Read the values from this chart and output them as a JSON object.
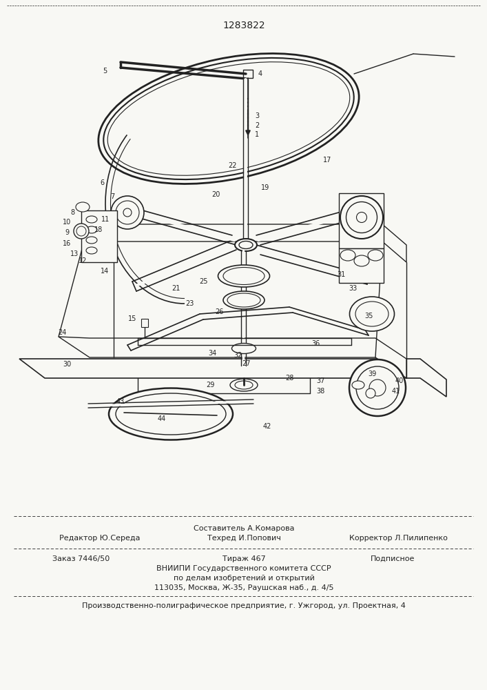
{
  "patent_number": "1283822",
  "bg": "#f8f8f4",
  "clr": "#222222",
  "footer": {
    "line1_center_top": "Составитель А.Комарова",
    "line1_left": "Редактор Ю.Середа",
    "line1_center": "Техред И.Попович",
    "line1_right": "Корректор Л.Пилипенко",
    "line2_col1": "Заказ 7446/50",
    "line2_col2": "Тираж 467",
    "line2_col3": "Подписное",
    "line3": "ВНИИПИ Государственного комитета СССР",
    "line4": "по делам изобретений и открытий",
    "line5": "113035, Москва, Ж-35, Раушская наб., д. 4/5",
    "bottom": "Производственно-полиграфическое предприятие, г. Ужгород, ул. Проектная, 4"
  }
}
